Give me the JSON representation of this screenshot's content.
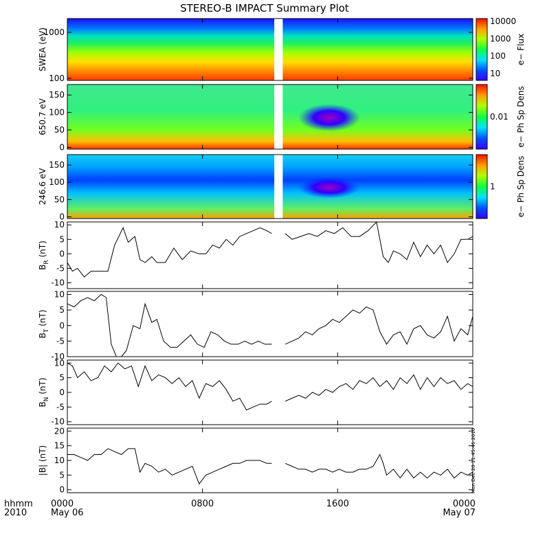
{
  "title": "STEREO-B IMPACT Summary Plot",
  "stamp": "Mon Dec 20 11:45:46 2010",
  "x_axis": {
    "row_labels": [
      "hhmm",
      "2010"
    ],
    "ticks": [
      {
        "hhmm": "0000",
        "date": "May 06",
        "hours": 0
      },
      {
        "hhmm": "0800",
        "date": "",
        "hours": 8
      },
      {
        "hhmm": "1600",
        "date": "",
        "hours": 16
      },
      {
        "hhmm": "0000",
        "date": "May 07",
        "hours": 24
      }
    ],
    "range_hours": [
      0,
      24
    ]
  },
  "colors": {
    "trace": "#000000",
    "gap": "#ffffff"
  },
  "chart_data": [
    {
      "type": "heatmap",
      "ylabel": "SWEA (eV)",
      "ylog": true,
      "ylim": [
        90,
        2000
      ],
      "yticks": [
        {
          "v": 100,
          "t": "100"
        },
        {
          "v": 1000,
          "t": "1000"
        }
      ],
      "colorbar_label": "e− Flux",
      "colorbar_ticks": [
        "10000",
        "1000",
        "100",
        "10"
      ],
      "data_gap_hours": [
        12.25,
        12.75
      ]
    },
    {
      "type": "heatmap",
      "ylabel": "650.7 eV",
      "ylim": [
        -5,
        180
      ],
      "yticks": [
        {
          "v": 0,
          "t": "0"
        },
        {
          "v": 50,
          "t": "50"
        },
        {
          "v": 100,
          "t": "100"
        },
        {
          "v": 150,
          "t": "150"
        }
      ],
      "colorbar_label": "e− Ph Sp Dens",
      "colorbar_ticks": [
        "0.01"
      ],
      "data_gap_hours": [
        12.25,
        12.75
      ]
    },
    {
      "type": "heatmap",
      "ylabel": "246.6 eV",
      "ylim": [
        -5,
        180
      ],
      "yticks": [
        {
          "v": 0,
          "t": "0"
        },
        {
          "v": 50,
          "t": "50"
        },
        {
          "v": 100,
          "t": "100"
        },
        {
          "v": 150,
          "t": "150"
        }
      ],
      "colorbar_label": "e− Ph Sp Dens",
      "colorbar_ticks": [
        "1"
      ],
      "data_gap_hours": [
        12.25,
        12.75
      ]
    },
    {
      "type": "line",
      "ylabel_main": "B",
      "ylabel_sub": "R",
      "ylabel_unit": " (nT)",
      "ylim": [
        -12,
        11
      ],
      "yticks": [
        -10,
        -5,
        0,
        5,
        10
      ],
      "x": [
        0,
        0.3,
        0.6,
        1.0,
        1.4,
        2.0,
        2.4,
        2.8,
        3.3,
        3.6,
        4.0,
        4.3,
        4.6,
        5.0,
        5.3,
        5.8,
        6.3,
        6.8,
        7.3,
        7.8,
        8.2,
        8.6,
        9.0,
        9.4,
        9.8,
        10.2,
        10.6,
        11.0,
        11.4,
        11.8,
        12.1,
        12.9,
        13.3,
        13.8,
        14.3,
        14.8,
        15.3,
        15.8,
        16.3,
        16.8,
        17.3,
        17.8,
        18.3,
        18.7,
        19.0,
        19.3,
        19.7,
        20.1,
        20.5,
        20.9,
        21.3,
        21.7,
        22.1,
        22.5,
        22.9,
        23.3,
        23.7,
        24.0
      ],
      "y": [
        -3,
        -6,
        -5,
        -8,
        -6,
        -6,
        -6,
        3,
        9,
        4,
        6,
        -2,
        -3,
        -1,
        -3,
        -3,
        2,
        -2,
        1,
        0,
        0,
        3,
        2,
        5,
        3,
        6,
        7,
        8,
        9,
        8,
        7,
        7,
        5,
        6,
        7,
        6,
        8,
        7,
        9,
        6,
        6,
        8,
        11,
        -1,
        -3,
        1,
        0,
        -2,
        4,
        -1,
        3,
        0,
        3,
        -3,
        0,
        5,
        5,
        6
      ]
    },
    {
      "type": "line",
      "ylabel_main": "B",
      "ylabel_sub": "T",
      "ylabel_unit": " (nT)",
      "ylim": [
        -10,
        11
      ],
      "yticks": [
        -10,
        -5,
        0,
        5,
        10
      ],
      "x": [
        0,
        0.4,
        0.8,
        1.2,
        1.6,
        2.0,
        2.3,
        2.6,
        2.9,
        3.2,
        3.5,
        3.9,
        4.3,
        4.6,
        5.0,
        5.3,
        5.7,
        6.1,
        6.5,
        6.9,
        7.3,
        7.7,
        8.1,
        8.5,
        8.9,
        9.3,
        9.7,
        10.1,
        10.5,
        10.9,
        11.3,
        11.7,
        12.1,
        12.9,
        13.3,
        13.7,
        14.1,
        14.5,
        14.9,
        15.3,
        15.7,
        16.1,
        16.5,
        16.9,
        17.3,
        17.7,
        18.1,
        18.5,
        18.9,
        19.3,
        19.7,
        20.1,
        20.5,
        20.9,
        21.3,
        21.7,
        22.1,
        22.5,
        22.9,
        23.3,
        23.7,
        24.0
      ],
      "y": [
        7,
        6,
        8,
        9,
        8,
        10,
        9,
        -6,
        -10,
        -10,
        -8,
        0,
        -1,
        7,
        1,
        2,
        -5,
        -7,
        -7,
        -5,
        -3,
        -6,
        -7,
        -2,
        -3,
        -5,
        -6,
        -6,
        -5,
        -6,
        -5,
        -6,
        -6,
        -6,
        -5,
        -4,
        -2,
        -3,
        -1,
        0,
        2,
        1,
        3,
        5,
        4,
        6,
        5,
        -2,
        -6,
        -3,
        -2,
        -6,
        -1,
        0,
        -3,
        -4,
        -2,
        3,
        -5,
        -1,
        -3,
        3
      ]
    },
    {
      "type": "line",
      "ylabel_main": "B",
      "ylabel_sub": "N",
      "ylabel_unit": " (nT)",
      "ylim": [
        -11,
        11
      ],
      "yticks": [
        -10,
        -5,
        0,
        5,
        10
      ],
      "x": [
        0,
        0.3,
        0.6,
        1.0,
        1.4,
        1.8,
        2.2,
        2.6,
        3.0,
        3.4,
        3.8,
        4.2,
        4.6,
        5.0,
        5.4,
        5.8,
        6.2,
        6.6,
        7.0,
        7.4,
        7.8,
        8.2,
        8.6,
        9.0,
        9.4,
        9.8,
        10.2,
        10.6,
        11.0,
        11.4,
        11.8,
        12.1,
        12.9,
        13.3,
        13.7,
        14.1,
        14.5,
        14.9,
        15.3,
        15.7,
        16.1,
        16.5,
        16.9,
        17.3,
        17.7,
        18.1,
        18.5,
        18.9,
        19.3,
        19.7,
        20.1,
        20.5,
        20.9,
        21.3,
        21.7,
        22.1,
        22.5,
        22.9,
        23.3,
        23.7,
        24.0
      ],
      "y": [
        10,
        9,
        5,
        7,
        4,
        5,
        9,
        7,
        10,
        8,
        9,
        2,
        9,
        4,
        6,
        5,
        3,
        5,
        2,
        4,
        -2,
        3,
        2,
        4,
        1,
        -3,
        -2,
        -6,
        -5,
        -4,
        -4,
        -3,
        -3,
        -2,
        -1,
        -2,
        0,
        -1,
        1,
        0,
        2,
        3,
        1,
        4,
        3,
        5,
        2,
        4,
        1,
        5,
        3,
        6,
        1,
        5,
        2,
        5,
        3,
        4,
        1,
        3,
        2
      ]
    },
    {
      "type": "line",
      "ylabel": "|B| (nT)",
      "ylim": [
        -1,
        21
      ],
      "yticks": [
        0,
        5,
        10,
        15,
        20
      ],
      "x": [
        0,
        0.4,
        0.8,
        1.2,
        1.6,
        2.0,
        2.4,
        2.8,
        3.2,
        3.6,
        4.0,
        4.3,
        4.6,
        5.0,
        5.4,
        5.8,
        6.2,
        6.6,
        7.0,
        7.4,
        7.8,
        8.2,
        8.6,
        9.0,
        9.4,
        9.8,
        10.2,
        10.6,
        11.0,
        11.4,
        11.8,
        12.1,
        12.9,
        13.3,
        13.7,
        14.1,
        14.5,
        14.9,
        15.3,
        15.7,
        16.1,
        16.5,
        16.9,
        17.3,
        17.7,
        18.1,
        18.5,
        18.7,
        18.9,
        19.3,
        19.7,
        20.1,
        20.5,
        20.9,
        21.3,
        21.7,
        22.1,
        22.5,
        22.9,
        23.3,
        23.7,
        24.0
      ],
      "y": [
        12,
        12,
        11,
        10,
        12,
        12,
        14,
        13,
        12,
        14,
        14,
        6,
        9,
        8,
        6,
        7,
        5,
        6,
        7,
        8,
        2,
        5,
        6,
        7,
        8,
        9,
        9,
        10,
        10,
        10,
        9,
        9,
        9,
        8,
        7,
        7,
        6,
        7,
        7,
        6,
        7,
        6,
        6,
        7,
        7,
        8,
        12,
        9,
        5,
        7,
        4,
        7,
        4,
        6,
        4,
        6,
        5,
        7,
        4,
        6,
        5,
        6
      ]
    }
  ]
}
